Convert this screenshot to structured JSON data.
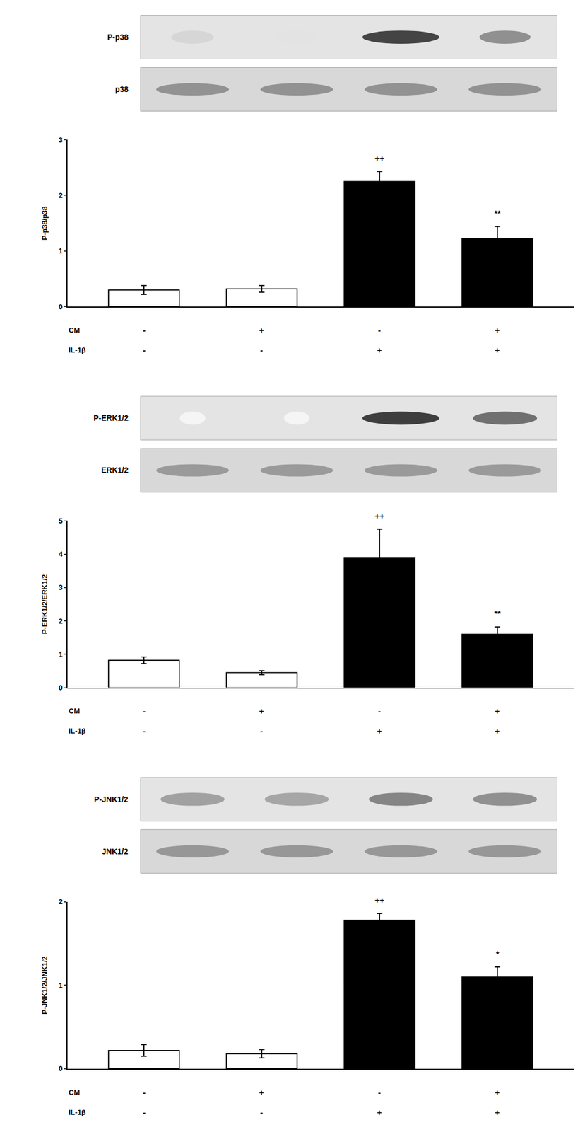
{
  "chart_data": [
    {
      "type": "bar",
      "ylabel": "P-p38/p38",
      "categories": [
        null,
        null,
        null,
        null
      ],
      "values": [
        0.3,
        0.32,
        2.25,
        1.22
      ],
      "errors": [
        0.08,
        0.06,
        0.18,
        0.22
      ],
      "colors": [
        "white",
        "white",
        "black",
        "black"
      ],
      "annotations": [
        null,
        null,
        "++",
        "**"
      ],
      "x_rows": [
        {
          "label": "CM",
          "labels": [
            "-",
            "+",
            "-",
            "+"
          ]
        },
        {
          "label": "IL-1β",
          "labels": [
            "-",
            "-",
            "+",
            "+"
          ]
        }
      ],
      "ylim": [
        0,
        3
      ],
      "yticks": [
        0,
        1,
        2,
        3
      ],
      "grid": false,
      "tick_labels": "y",
      "blot": [
        {
          "label": "P-p38",
          "intensities": [
            0.18,
            0.12,
            0.85,
            0.5
          ],
          "widths": [
            0.5,
            0.5,
            0.9,
            0.6
          ]
        },
        {
          "label": "p38",
          "intensities": [
            0.65,
            0.65,
            0.65,
            0.65
          ],
          "widths": [
            0.85,
            0.85,
            0.85,
            0.85
          ]
        }
      ]
    },
    {
      "type": "bar",
      "ylabel": "P-ERK1/2/ERK1/2",
      "categories": [
        null,
        null,
        null,
        null
      ],
      "values": [
        0.82,
        0.45,
        3.9,
        1.6
      ],
      "errors": [
        0.1,
        0.06,
        0.85,
        0.22
      ],
      "colors": [
        "white",
        "white",
        "black",
        "black"
      ],
      "annotations": [
        null,
        null,
        "++",
        "**"
      ],
      "x_rows": [
        {
          "label": "CM",
          "labels": [
            "-",
            "+",
            "-",
            "+"
          ]
        },
        {
          "label": "IL-1β",
          "labels": [
            "-",
            "-",
            "+",
            "+"
          ]
        }
      ],
      "ylim": [
        0,
        5
      ],
      "yticks": [
        0,
        1,
        2,
        3,
        4,
        5
      ],
      "grid": false,
      "tick_labels": "y",
      "blot": [
        {
          "label": "P-ERK1/2",
          "intensities": [
            0.04,
            0.04,
            0.88,
            0.65
          ],
          "widths": [
            0.3,
            0.3,
            0.9,
            0.75
          ]
        },
        {
          "label": "ERK1/2",
          "intensities": [
            0.6,
            0.6,
            0.6,
            0.6
          ],
          "widths": [
            0.85,
            0.85,
            0.85,
            0.85
          ]
        }
      ]
    },
    {
      "type": "bar",
      "ylabel": "P-JNK1/2/JNK1/2",
      "categories": [
        null,
        null,
        null,
        null
      ],
      "values": [
        0.22,
        0.18,
        1.78,
        1.1
      ],
      "errors": [
        0.07,
        0.05,
        0.08,
        0.12
      ],
      "colors": [
        "white",
        "white",
        "black",
        "black"
      ],
      "annotations": [
        null,
        null,
        "++",
        "*"
      ],
      "x_rows": [
        {
          "label": "CM",
          "labels": [
            "-",
            "+",
            "-",
            "+"
          ]
        },
        {
          "label": "IL-1β",
          "labels": [
            "-",
            "-",
            "+",
            "+"
          ]
        }
      ],
      "ylim": [
        0,
        2
      ],
      "yticks": [
        0,
        1,
        2
      ],
      "grid": false,
      "tick_labels": "y",
      "blot": [
        {
          "label": "P-JNK1/2",
          "intensities": [
            0.42,
            0.4,
            0.55,
            0.5
          ],
          "widths": [
            0.75,
            0.75,
            0.75,
            0.75
          ]
        },
        {
          "label": "JNK1/2",
          "intensities": [
            0.62,
            0.62,
            0.62,
            0.62
          ],
          "widths": [
            0.85,
            0.85,
            0.85,
            0.85
          ]
        }
      ]
    }
  ]
}
